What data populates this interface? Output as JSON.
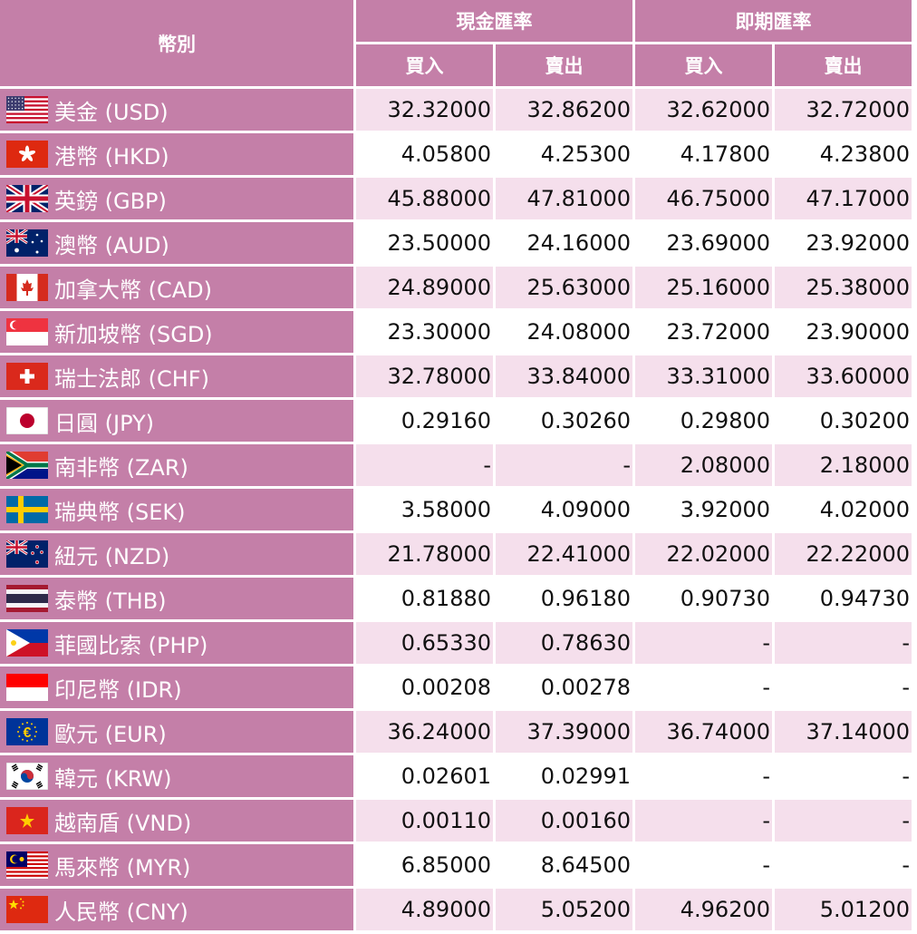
{
  "header": {
    "currency": "幣別",
    "cash_rate": "現金匯率",
    "spot_rate": "即期匯率",
    "buy": "買入",
    "sell": "賣出"
  },
  "colors": {
    "header_bg": "#c47fa8",
    "row_odd_bg": "#f5dfec",
    "row_even_bg": "#ffffff"
  },
  "rows": [
    {
      "name": "美金 (USD)",
      "flag": "us-flag-icon",
      "cash_buy": "32.32000",
      "cash_sell": "32.86200",
      "spot_buy": "32.62000",
      "spot_sell": "32.72000"
    },
    {
      "name": "港幣 (HKD)",
      "flag": "hk-flag-icon",
      "cash_buy": "4.05800",
      "cash_sell": "4.25300",
      "spot_buy": "4.17800",
      "spot_sell": "4.23800"
    },
    {
      "name": "英鎊 (GBP)",
      "flag": "gb-flag-icon",
      "cash_buy": "45.88000",
      "cash_sell": "47.81000",
      "spot_buy": "46.75000",
      "spot_sell": "47.17000"
    },
    {
      "name": "澳幣 (AUD)",
      "flag": "au-flag-icon",
      "cash_buy": "23.50000",
      "cash_sell": "24.16000",
      "spot_buy": "23.69000",
      "spot_sell": "23.92000"
    },
    {
      "name": "加拿大幣 (CAD)",
      "flag": "ca-flag-icon",
      "cash_buy": "24.89000",
      "cash_sell": "25.63000",
      "spot_buy": "25.16000",
      "spot_sell": "25.38000"
    },
    {
      "name": "新加坡幣 (SGD)",
      "flag": "sg-flag-icon",
      "cash_buy": "23.30000",
      "cash_sell": "24.08000",
      "spot_buy": "23.72000",
      "spot_sell": "23.90000"
    },
    {
      "name": "瑞士法郎 (CHF)",
      "flag": "ch-flag-icon",
      "cash_buy": "32.78000",
      "cash_sell": "33.84000",
      "spot_buy": "33.31000",
      "spot_sell": "33.60000"
    },
    {
      "name": "日圓 (JPY)",
      "flag": "jp-flag-icon",
      "cash_buy": "0.29160",
      "cash_sell": "0.30260",
      "spot_buy": "0.29800",
      "spot_sell": "0.30200"
    },
    {
      "name": "南非幣 (ZAR)",
      "flag": "za-flag-icon",
      "cash_buy": "-",
      "cash_sell": "-",
      "spot_buy": "2.08000",
      "spot_sell": "2.18000"
    },
    {
      "name": "瑞典幣 (SEK)",
      "flag": "se-flag-icon",
      "cash_buy": "3.58000",
      "cash_sell": "4.09000",
      "spot_buy": "3.92000",
      "spot_sell": "4.02000"
    },
    {
      "name": "紐元 (NZD)",
      "flag": "nz-flag-icon",
      "cash_buy": "21.78000",
      "cash_sell": "22.41000",
      "spot_buy": "22.02000",
      "spot_sell": "22.22000"
    },
    {
      "name": "泰幣 (THB)",
      "flag": "th-flag-icon",
      "cash_buy": "0.81880",
      "cash_sell": "0.96180",
      "spot_buy": "0.90730",
      "spot_sell": "0.94730"
    },
    {
      "name": "菲國比索 (PHP)",
      "flag": "ph-flag-icon",
      "cash_buy": "0.65330",
      "cash_sell": "0.78630",
      "spot_buy": "-",
      "spot_sell": "-"
    },
    {
      "name": "印尼幣 (IDR)",
      "flag": "id-flag-icon",
      "cash_buy": "0.00208",
      "cash_sell": "0.00278",
      "spot_buy": "-",
      "spot_sell": "-"
    },
    {
      "name": "歐元 (EUR)",
      "flag": "eu-flag-icon",
      "cash_buy": "36.24000",
      "cash_sell": "37.39000",
      "spot_buy": "36.74000",
      "spot_sell": "37.14000"
    },
    {
      "name": "韓元 (KRW)",
      "flag": "kr-flag-icon",
      "cash_buy": "0.02601",
      "cash_sell": "0.02991",
      "spot_buy": "-",
      "spot_sell": "-"
    },
    {
      "name": "越南盾 (VND)",
      "flag": "vn-flag-icon",
      "cash_buy": "0.00110",
      "cash_sell": "0.00160",
      "spot_buy": "-",
      "spot_sell": "-"
    },
    {
      "name": "馬來幣 (MYR)",
      "flag": "my-flag-icon",
      "cash_buy": "6.85000",
      "cash_sell": "8.64500",
      "spot_buy": "-",
      "spot_sell": "-"
    },
    {
      "name": "人民幣 (CNY)",
      "flag": "cn-flag-icon",
      "cash_buy": "4.89000",
      "cash_sell": "5.05200",
      "spot_buy": "4.96200",
      "spot_sell": "5.01200"
    }
  ]
}
